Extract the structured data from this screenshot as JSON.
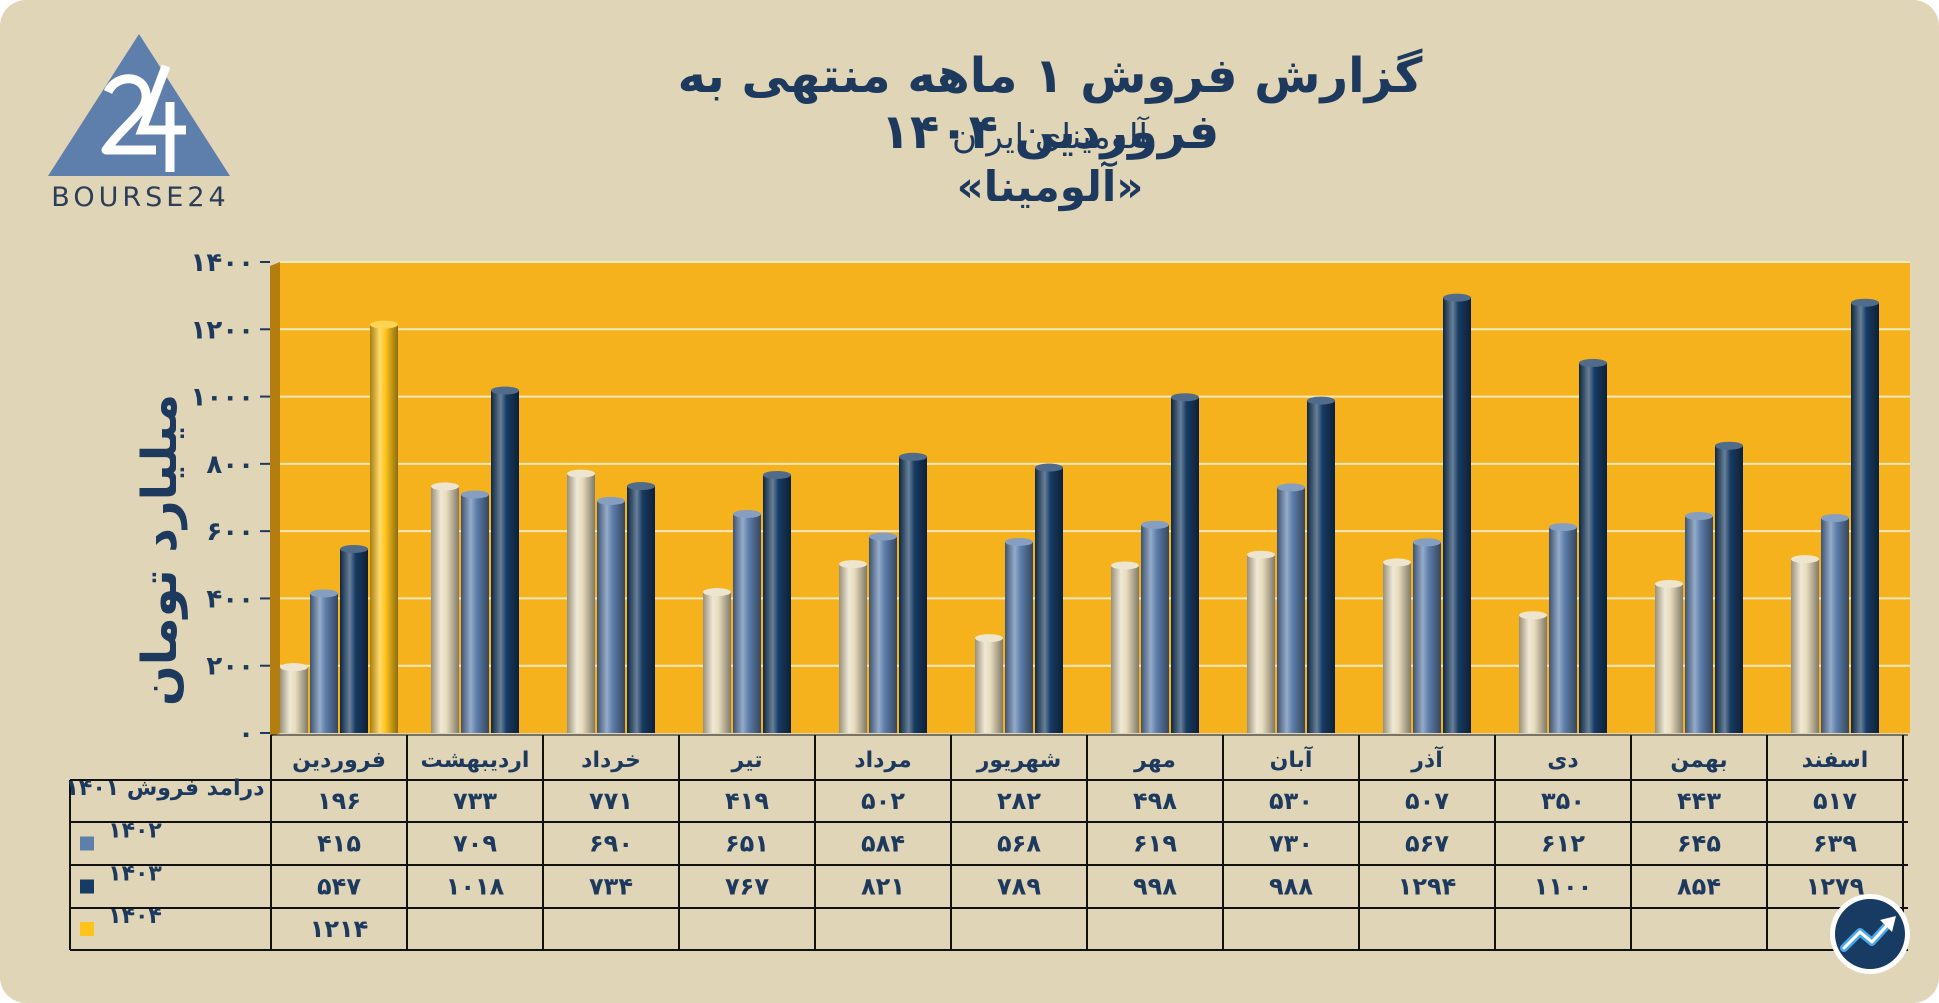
{
  "header": {
    "title": "گزارش  فروش ۱ ماهه منتهی به فروردین ۱۴۰۴",
    "subtitle": "آلومینای ایران",
    "company": "«آلومینا»",
    "logo_text": "BOURSE24"
  },
  "colors": {
    "background": "#e0d5b6",
    "plot_bg": "#f6b21d",
    "s1401": "#e7dcbd",
    "s1402": "#5e7fac",
    "s1403": "#173b63",
    "s1404": "#ffc41b",
    "text": "#1d3a5e"
  },
  "chart_data": {
    "type": "bar",
    "ylabel": "میلیارد تومان",
    "ylim": [
      0,
      1400
    ],
    "yticks": [
      "۰",
      "۲۰۰",
      "۴۰۰",
      "۶۰۰",
      "۸۰۰",
      "۱۰۰۰",
      "۱۲۰۰",
      "۱۴۰۰"
    ],
    "ytick_values": [
      0,
      200,
      400,
      600,
      800,
      1000,
      1200,
      1400
    ],
    "grid": true,
    "categories": [
      "فروردین",
      "اردیبهشت",
      "خرداد",
      "تیر",
      "مرداد",
      "شهریور",
      "مهر",
      "آبان",
      "آذر",
      "دی",
      "بهمن",
      "اسفند"
    ],
    "series": [
      {
        "name": "درامد فروش ۱۴۰۱",
        "values": [
          196,
          733,
          771,
          419,
          502,
          282,
          498,
          530,
          507,
          350,
          443,
          517
        ],
        "labels": [
          "۱۹۶",
          "۷۳۳",
          "۷۷۱",
          "۴۱۹",
          "۵۰۲",
          "۲۸۲",
          "۴۹۸",
          "۵۳۰",
          "۵۰۷",
          "۳۵۰",
          "۴۴۳",
          "۵۱۷"
        ]
      },
      {
        "name": "۱۴۰۲",
        "values": [
          415,
          709,
          690,
          651,
          584,
          568,
          619,
          730,
          567,
          612,
          645,
          639
        ],
        "labels": [
          "۴۱۵",
          "۷۰۹",
          "۶۹۰",
          "۶۵۱",
          "۵۸۴",
          "۵۶۸",
          "۶۱۹",
          "۷۳۰",
          "۵۶۷",
          "۶۱۲",
          "۶۴۵",
          "۶۳۹"
        ]
      },
      {
        "name": "۱۴۰۳",
        "values": [
          547,
          1018,
          734,
          767,
          821,
          789,
          998,
          988,
          1294,
          1100,
          854,
          1279
        ],
        "labels": [
          "۵۴۷",
          "۱۰۱۸",
          "۷۳۴",
          "۷۶۷",
          "۸۲۱",
          "۷۸۹",
          "۹۹۸",
          "۹۸۸",
          "۱۲۹۴",
          "۱۱۰۰",
          "۸۵۴",
          "۱۲۷۹"
        ]
      },
      {
        "name": "۱۴۰۴",
        "values": [
          1214,
          null,
          null,
          null,
          null,
          null,
          null,
          null,
          null,
          null,
          null,
          null
        ],
        "labels": [
          "۱۲۱۴",
          "",
          "",
          "",
          "",
          "",
          "",
          "",
          "",
          "",
          "",
          ""
        ]
      }
    ]
  }
}
